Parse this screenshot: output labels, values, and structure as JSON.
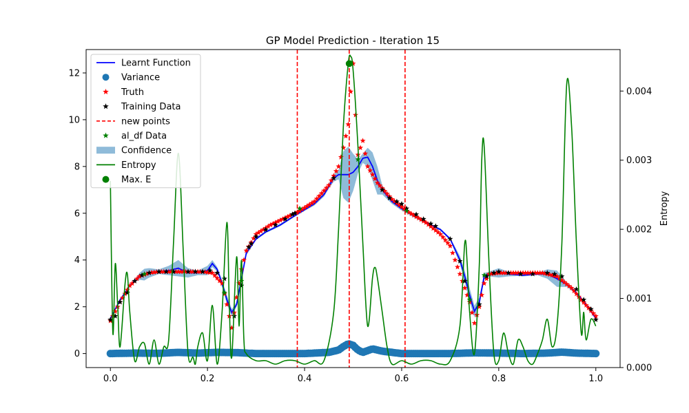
{
  "chart_data": {
    "type": "line",
    "title": "GP Model Prediction - Iteration 15",
    "xlabel": "",
    "ylabel": "",
    "y2label": "Entropy",
    "xlim": [
      -0.05,
      1.05
    ],
    "ylim": [
      -0.6,
      13.0
    ],
    "y2lim": [
      0.0,
      0.0046
    ],
    "xticks": [
      "0.0",
      "0.2",
      "0.4",
      "0.6",
      "0.8",
      "1.0"
    ],
    "xtick_values": [
      0.0,
      0.2,
      0.4,
      0.6,
      0.8,
      1.0
    ],
    "yticks": [
      "0",
      "2",
      "4",
      "6",
      "8",
      "10",
      "12"
    ],
    "ytick_values": [
      0,
      2,
      4,
      6,
      8,
      10,
      12
    ],
    "y2ticks": [
      "0.000",
      "0.001",
      "0.002",
      "0.003",
      "0.004"
    ],
    "y2tick_values": [
      0.0,
      0.001,
      0.002,
      0.003,
      0.004
    ],
    "legend_position": "upper-left",
    "legend": [
      {
        "label": "Learnt Function",
        "kind": "line",
        "color": "#0000ff"
      },
      {
        "label": "Variance",
        "kind": "circle",
        "color": "#1f77b4"
      },
      {
        "label": "Truth",
        "kind": "star",
        "color": "#ff0000"
      },
      {
        "label": "Training Data",
        "kind": "star",
        "color": "#000000"
      },
      {
        "label": "new points",
        "kind": "dashed",
        "color": "#ff0000"
      },
      {
        "label": "al_df Data",
        "kind": "star",
        "color": "#008000"
      },
      {
        "label": "Confidence",
        "kind": "patch",
        "color": "#1f77b4"
      },
      {
        "label": "Entropy",
        "kind": "line",
        "color": "#008000"
      },
      {
        "label": "Max. E",
        "kind": "circle",
        "color": "#008000"
      }
    ],
    "colors": {
      "learnt": "#0000ff",
      "variance": "#1f77b4",
      "truth": "#ff0000",
      "training": "#000000",
      "new_points": "#ff0000",
      "al_df": "#008000",
      "confidence": "#1f77b4",
      "entropy": "#008000"
    },
    "new_points_x": [
      0.385,
      0.492,
      0.607
    ],
    "max_entropy": {
      "x": 0.492,
      "y": 12.4
    },
    "learnt_function": {
      "x": [
        0.0,
        0.02,
        0.04,
        0.06,
        0.08,
        0.1,
        0.12,
        0.14,
        0.16,
        0.18,
        0.2,
        0.21,
        0.22,
        0.23,
        0.24,
        0.25,
        0.26,
        0.27,
        0.28,
        0.3,
        0.32,
        0.35,
        0.38,
        0.4,
        0.42,
        0.44,
        0.46,
        0.47,
        0.48,
        0.49,
        0.5,
        0.51,
        0.52,
        0.53,
        0.54,
        0.55,
        0.56,
        0.58,
        0.6,
        0.62,
        0.65,
        0.68,
        0.7,
        0.72,
        0.73,
        0.74,
        0.75,
        0.76,
        0.77,
        0.78,
        0.8,
        0.82,
        0.85,
        0.88,
        0.9,
        0.92,
        0.94,
        0.96,
        0.98,
        1.0
      ],
      "y": [
        1.5,
        2.3,
        2.9,
        3.3,
        3.45,
        3.5,
        3.55,
        3.65,
        3.45,
        3.45,
        3.55,
        3.85,
        3.6,
        3.0,
        2.3,
        1.75,
        2.1,
        3.2,
        4.3,
        4.9,
        5.2,
        5.5,
        5.9,
        6.15,
        6.4,
        6.8,
        7.5,
        7.65,
        7.65,
        7.65,
        7.75,
        8.0,
        8.35,
        8.4,
        8.0,
        7.4,
        7.0,
        6.5,
        6.2,
        5.95,
        5.6,
        5.3,
        4.9,
        4.0,
        3.3,
        2.5,
        1.8,
        2.2,
        3.3,
        3.4,
        3.45,
        3.4,
        3.35,
        3.4,
        3.4,
        3.2,
        2.95,
        2.6,
        2.1,
        1.5
      ]
    },
    "confidence_halfwidth": {
      "x": [
        0.0,
        0.05,
        0.07,
        0.1,
        0.12,
        0.14,
        0.16,
        0.18,
        0.2,
        0.22,
        0.24,
        0.26,
        0.28,
        0.3,
        0.35,
        0.4,
        0.45,
        0.47,
        0.48,
        0.49,
        0.5,
        0.51,
        0.52,
        0.53,
        0.54,
        0.55,
        0.56,
        0.58,
        0.65,
        0.7,
        0.74,
        0.76,
        0.78,
        0.8,
        0.82,
        0.84,
        0.88,
        0.9,
        0.92,
        0.94,
        0.96,
        1.0
      ],
      "y": [
        0.0,
        0.05,
        0.25,
        0.1,
        0.2,
        0.35,
        0.2,
        0.1,
        0.2,
        0.1,
        0.2,
        0.1,
        0.1,
        0.05,
        0.05,
        0.05,
        0.1,
        0.2,
        1.0,
        1.2,
        0.8,
        0.3,
        0.2,
        0.4,
        0.6,
        0.6,
        0.2,
        0.1,
        0.05,
        0.05,
        0.3,
        0.2,
        0.1,
        0.2,
        0.1,
        0.05,
        0.05,
        0.2,
        0.35,
        0.1,
        0.05,
        0.0
      ]
    },
    "variance": {
      "x": [
        0.0,
        0.05,
        0.1,
        0.14,
        0.18,
        0.22,
        0.26,
        0.3,
        0.35,
        0.4,
        0.45,
        0.47,
        0.48,
        0.49,
        0.5,
        0.51,
        0.52,
        0.54,
        0.56,
        0.6,
        0.65,
        0.7,
        0.75,
        0.8,
        0.85,
        0.9,
        0.93,
        0.96,
        1.0
      ],
      "y": [
        0.0,
        0.02,
        0.01,
        0.05,
        0.02,
        0.05,
        0.04,
        0.0,
        0.0,
        0.0,
        0.05,
        0.15,
        0.3,
        0.42,
        0.35,
        0.15,
        0.05,
        0.2,
        0.1,
        0.0,
        0.0,
        0.0,
        0.03,
        0.02,
        0.0,
        0.02,
        0.06,
        0.02,
        0.0
      ]
    },
    "truth_curve": {
      "x": [
        0.0,
        0.02,
        0.04,
        0.06,
        0.08,
        0.1,
        0.13,
        0.16,
        0.19,
        0.21,
        0.23,
        0.24,
        0.25,
        0.26,
        0.27,
        0.28,
        0.3,
        0.33,
        0.36,
        0.39,
        0.42,
        0.45,
        0.47,
        0.48,
        0.49,
        0.495,
        0.5,
        0.505,
        0.51,
        0.52,
        0.53,
        0.55,
        0.58,
        0.61,
        0.65,
        0.68,
        0.7,
        0.72,
        0.74,
        0.75,
        0.76,
        0.77,
        0.78,
        0.8,
        0.83,
        0.86,
        0.89,
        0.92,
        0.95,
        0.97,
        1.0
      ],
      "y": [
        1.4,
        2.2,
        2.9,
        3.3,
        3.45,
        3.5,
        3.5,
        3.5,
        3.5,
        3.45,
        3.0,
        2.1,
        1.1,
        2.4,
        3.6,
        4.4,
        5.1,
        5.5,
        5.8,
        6.1,
        6.5,
        7.2,
        8.0,
        8.8,
        9.8,
        11.2,
        12.4,
        10.2,
        8.5,
        9.1,
        8.0,
        7.3,
        6.6,
        6.1,
        5.6,
        5.1,
        4.6,
        3.4,
        2.2,
        1.3,
        2.0,
        3.0,
        3.4,
        3.45,
        3.45,
        3.45,
        3.45,
        3.3,
        2.8,
        2.3,
        1.6
      ]
    },
    "training_data": {
      "x": [
        0.0,
        0.01,
        0.02,
        0.035,
        0.05,
        0.065,
        0.08,
        0.1,
        0.115,
        0.13,
        0.16,
        0.175,
        0.19,
        0.205,
        0.22,
        0.235,
        0.255,
        0.27,
        0.285,
        0.29,
        0.3,
        0.32,
        0.34,
        0.36,
        0.375,
        0.38,
        0.46,
        0.56,
        0.575,
        0.59,
        0.6,
        0.61,
        0.63,
        0.645,
        0.66,
        0.67,
        0.7,
        0.72,
        0.73,
        0.76,
        0.775,
        0.79,
        0.8,
        0.82,
        0.845,
        0.87,
        0.9,
        0.915,
        0.93,
        0.96,
        0.975,
        0.99,
        1.0
      ],
      "y": [
        1.45,
        1.6,
        2.2,
        2.6,
        3.1,
        3.35,
        3.45,
        3.5,
        3.5,
        3.5,
        3.5,
        3.5,
        3.5,
        3.55,
        3.45,
        3.2,
        1.6,
        2.9,
        4.55,
        4.7,
        5.0,
        5.3,
        5.5,
        5.75,
        5.95,
        6.0,
        7.5,
        7.0,
        6.65,
        6.5,
        6.4,
        6.2,
        5.95,
        5.75,
        5.55,
        5.45,
        4.9,
        3.95,
        3.1,
        2.1,
        3.3,
        3.45,
        3.5,
        3.45,
        3.4,
        3.4,
        3.45,
        3.4,
        3.3,
        2.75,
        2.3,
        1.9,
        1.45
      ]
    },
    "al_df_data": {
      "x": [
        0.07,
        0.235,
        0.27,
        0.39,
        0.49,
        0.51,
        0.61,
        0.74,
        0.77
      ],
      "y": [
        3.4,
        2.6,
        3.1,
        6.2,
        12.4,
        8.3,
        6.1,
        2.3,
        3.35
      ]
    },
    "entropy": {
      "x": [
        0.0,
        0.005,
        0.01,
        0.015,
        0.02,
        0.03,
        0.035,
        0.04,
        0.05,
        0.06,
        0.07,
        0.08,
        0.09,
        0.1,
        0.11,
        0.12,
        0.13,
        0.14,
        0.15,
        0.16,
        0.17,
        0.175,
        0.18,
        0.19,
        0.2,
        0.21,
        0.22,
        0.23,
        0.24,
        0.245,
        0.25,
        0.26,
        0.265,
        0.27,
        0.275,
        0.28,
        0.3,
        0.32,
        0.34,
        0.36,
        0.38,
        0.4,
        0.42,
        0.44,
        0.46,
        0.47,
        0.48,
        0.49,
        0.495,
        0.5,
        0.51,
        0.52,
        0.53,
        0.54,
        0.545,
        0.55,
        0.56,
        0.57,
        0.58,
        0.6,
        0.62,
        0.64,
        0.66,
        0.68,
        0.7,
        0.72,
        0.73,
        0.735,
        0.74,
        0.75,
        0.76,
        0.765,
        0.77,
        0.78,
        0.79,
        0.8,
        0.81,
        0.82,
        0.83,
        0.84,
        0.85,
        0.86,
        0.87,
        0.88,
        0.89,
        0.9,
        0.91,
        0.92,
        0.93,
        0.94,
        0.95,
        0.96,
        0.97,
        0.975,
        0.98,
        0.99,
        1.0
      ],
      "y": [
        0.0027,
        0.0005,
        0.0015,
        0.0009,
        0.0003,
        0.0012,
        0.00135,
        0.0008,
        0.0001,
        0.0003,
        0.00035,
        5e-05,
        0.0004,
        5e-05,
        0.0003,
        0.0004,
        0.0018,
        0.0031,
        0.0017,
        0.0002,
        0.00015,
        5e-05,
        0.0003,
        0.0005,
        0.0001,
        0.0009,
        5e-05,
        0.0008,
        0.0021,
        0.0009,
        0.00015,
        0.0016,
        0.0006,
        0.00155,
        0.0004,
        0.0002,
        0.0001,
        0.0001,
        5e-05,
        0.0001,
        0.0001,
        5e-05,
        0.0001,
        0.0001,
        0.0008,
        0.002,
        0.0035,
        0.0044,
        0.0045,
        0.0043,
        0.0032,
        0.0018,
        0.0006,
        0.0013,
        0.00145,
        0.0013,
        0.0008,
        0.0003,
        5e-05,
        0.0001,
        5e-05,
        0.0001,
        0.0001,
        5e-05,
        0.0001,
        0.0006,
        0.0018,
        0.0015,
        0.0008,
        0.0002,
        0.0015,
        0.003,
        0.0032,
        0.0015,
        0.0002,
        0.0001,
        0.0005,
        0.0002,
        5e-05,
        0.0004,
        0.0003,
        0.0001,
        5e-05,
        0.0002,
        0.0004,
        0.0007,
        0.0003,
        0.0006,
        0.0018,
        0.0041,
        0.0035,
        0.0018,
        0.0005,
        0.0008,
        0.0004,
        0.0007,
        0.0006
      ]
    }
  }
}
